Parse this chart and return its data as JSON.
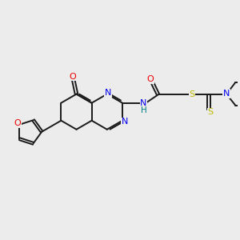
{
  "background_color": "#ececec",
  "bond_color": "#1a1a1a",
  "N_color": "#0000ee",
  "O_color": "#ee0000",
  "S_color": "#bbbb00",
  "NH_color": "#008080",
  "figsize": [
    3.0,
    3.0
  ],
  "dpi": 100,
  "xlim": [
    0,
    10
  ],
  "ylim": [
    0,
    10
  ]
}
